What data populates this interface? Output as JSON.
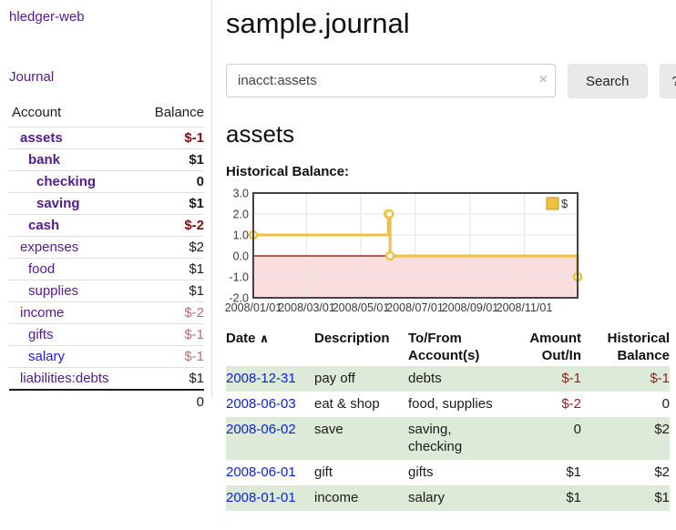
{
  "app": {
    "title": "hledger-web"
  },
  "colors": {
    "accent_purple": "#551a8b",
    "link_blue": "#0c22dd",
    "negative_strong": "#7c1113",
    "negative_soft": "#b56f6f",
    "negative_register": "#8e2323",
    "row_green": "#dcead7",
    "chart_gold": "#edc240",
    "chart_negative_fill": "#fadddd",
    "chart_zero_line": "#8b0000"
  },
  "sidebar": {
    "journal_link": "Journal",
    "account_header": "Account",
    "balance_header": "Balance",
    "accounts": [
      {
        "label": "assets",
        "depth": 1,
        "in_filter": true,
        "balance": "$-1",
        "balance_tone": "neg-strong",
        "link_tone": "purple"
      },
      {
        "label": "bank",
        "depth": 2,
        "in_filter": true,
        "balance": "$1",
        "balance_tone": "",
        "link_tone": "purple"
      },
      {
        "label": "checking",
        "depth": 3,
        "in_filter": true,
        "balance": "0",
        "balance_tone": "",
        "link_tone": "purple"
      },
      {
        "label": "saving",
        "depth": 3,
        "in_filter": true,
        "balance": "$1",
        "balance_tone": "",
        "link_tone": "purple"
      },
      {
        "label": "cash",
        "depth": 2,
        "in_filter": true,
        "balance": "$-2",
        "balance_tone": "neg-strong",
        "link_tone": "purple"
      },
      {
        "label": "expenses",
        "depth": 1,
        "in_filter": false,
        "balance": "$2",
        "balance_tone": "",
        "link_tone": "purple"
      },
      {
        "label": "food",
        "depth": 2,
        "in_filter": false,
        "balance": "$1",
        "balance_tone": "",
        "link_tone": "purple"
      },
      {
        "label": "supplies",
        "depth": 2,
        "in_filter": false,
        "balance": "$1",
        "balance_tone": "",
        "link_tone": "purple"
      },
      {
        "label": "income",
        "depth": 1,
        "in_filter": false,
        "balance": "$-2",
        "balance_tone": "neg-soft",
        "link_tone": "purple"
      },
      {
        "label": "gifts",
        "depth": 2,
        "in_filter": false,
        "balance": "$-1",
        "balance_tone": "neg-soft",
        "link_tone": "purple"
      },
      {
        "label": "salary",
        "depth": 2,
        "in_filter": false,
        "balance": "$-1",
        "balance_tone": "neg-soft",
        "link_tone": "blue"
      },
      {
        "label": "liabilities:debts",
        "depth": 1,
        "in_filter": false,
        "balance": "$1",
        "balance_tone": "",
        "link_tone": "purple"
      }
    ],
    "total": "0"
  },
  "main": {
    "title": "sample.journal",
    "search": {
      "value": "inacct:assets",
      "clear_icon": "×",
      "button_label": "Search",
      "help_label": "?"
    },
    "account_heading": "assets",
    "chart_label": "Historical Balance:",
    "register": {
      "headers": {
        "date": "Date",
        "sort_icon": "∧",
        "description": "Description",
        "accounts": [
          "To/From",
          "Account(s)"
        ],
        "amount": [
          "Amount",
          "Out/In"
        ],
        "balance": [
          "Historical",
          "Balance"
        ]
      },
      "rows": [
        {
          "date": "2008-12-31",
          "description": "pay off",
          "accounts": "debts",
          "amount": "$-1",
          "amount_negative": true,
          "balance": "$-1",
          "balance_negative": true,
          "shaded": true
        },
        {
          "date": "2008-06-03",
          "description": "eat & shop",
          "accounts": "food, supplies",
          "amount": "$-2",
          "amount_negative": true,
          "balance": "0",
          "balance_negative": false,
          "shaded": false
        },
        {
          "date": "2008-06-02",
          "description": "save",
          "accounts": "saving, checking",
          "amount": "0",
          "amount_negative": false,
          "balance": "$2",
          "balance_negative": false,
          "shaded": true
        },
        {
          "date": "2008-06-01",
          "description": "gift",
          "accounts": "gifts",
          "amount": "$1",
          "amount_negative": false,
          "balance": "$2",
          "balance_negative": false,
          "shaded": false
        },
        {
          "date": "2008-01-01",
          "description": "income",
          "accounts": "salary",
          "amount": "$1",
          "amount_negative": false,
          "balance": "$1",
          "balance_negative": false,
          "shaded": true
        }
      ]
    }
  },
  "chart_data": {
    "type": "line",
    "step": true,
    "title": "Historical Balance",
    "series": [
      {
        "name": "$",
        "color": "#edc240",
        "points": [
          [
            "2008-01-01",
            1
          ],
          [
            "2008-06-01",
            2
          ],
          [
            "2008-06-02",
            2
          ],
          [
            "2008-06-03",
            0
          ],
          [
            "2008-12-31",
            -1
          ]
        ]
      }
    ],
    "ylim": [
      -2,
      3
    ],
    "ytick_labels": [
      "3.0",
      "2.0",
      "1.0",
      "0.0",
      "-1.0",
      "-2.0"
    ],
    "yticks": [
      3,
      2,
      1,
      0,
      -1,
      -2
    ],
    "xtick_labels": [
      "2008/01/01",
      "2008/03/01",
      "2008/05/01",
      "2008/07/01",
      "2008/09/01",
      "2008/11/01"
    ],
    "xtick_dates": [
      "2008-01-01",
      "2008-03-01",
      "2008-05-01",
      "2008-07-01",
      "2008-09-01",
      "2008-11-01"
    ],
    "legend": {
      "label": "$",
      "position": "top-right"
    },
    "grid": true,
    "grid_color": "#e6e6e6",
    "border_color": "#434343",
    "tick_text_color": "#3a3a3a",
    "negative_region_fill": "#fadddd",
    "zero_line_color": "#8b0000"
  }
}
